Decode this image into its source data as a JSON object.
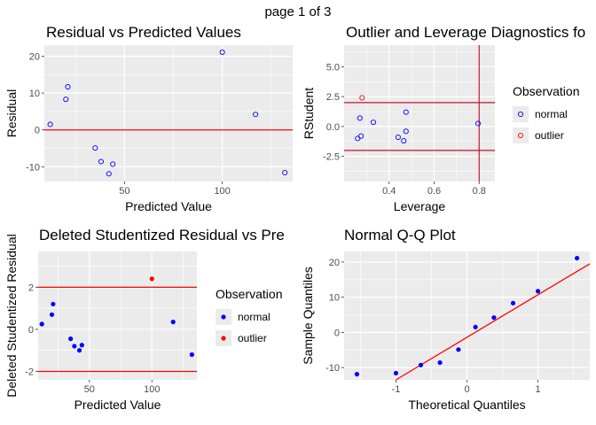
{
  "page_title": "page 1 of 3",
  "colors": {
    "normal": "#0000ff",
    "outlier": "#ff0000",
    "panel_bg": "#ebebeb",
    "grid": "#ffffff",
    "ref_line": "#ff0000",
    "lev_line": "#c8102e"
  },
  "chart_data": [
    {
      "id": "p1",
      "type": "scatter",
      "title": "Residual vs Predicted Values",
      "xlabel": "Predicted Value",
      "ylabel": "Residual",
      "xlim": [
        9,
        136
      ],
      "ylim": [
        -14,
        23
      ],
      "xticks": [
        50,
        100
      ],
      "yticks": [
        -10,
        0,
        10,
        20
      ],
      "marker": "open",
      "hlines": [
        0
      ],
      "points": [
        {
          "x": 12,
          "y": 1.5,
          "cls": "normal"
        },
        {
          "x": 20,
          "y": 8.3,
          "cls": "normal"
        },
        {
          "x": 21,
          "y": 11.7,
          "cls": "normal"
        },
        {
          "x": 35,
          "y": -4.9,
          "cls": "normal"
        },
        {
          "x": 38,
          "y": -8.6,
          "cls": "normal"
        },
        {
          "x": 42,
          "y": -11.9,
          "cls": "normal"
        },
        {
          "x": 44,
          "y": -9.3,
          "cls": "normal"
        },
        {
          "x": 100,
          "y": 21.1,
          "cls": "normal"
        },
        {
          "x": 117,
          "y": 4.2,
          "cls": "normal"
        },
        {
          "x": 132,
          "y": -11.6,
          "cls": "normal"
        }
      ]
    },
    {
      "id": "p2",
      "type": "scatter",
      "title": "Outlier and Leverage Diagnostics fo",
      "xlabel": "Leverage",
      "ylabel": "RStudent",
      "xlim": [
        0.2,
        0.87
      ],
      "ylim": [
        -4.6,
        6.8
      ],
      "xticks": [
        0.4,
        0.6,
        0.8
      ],
      "yticks": [
        -2.5,
        0.0,
        2.5,
        5.0
      ],
      "ytick_labels": [
        "-2.5",
        "0.0",
        "2.5",
        "5.0"
      ],
      "marker": "open",
      "hlines": [
        2,
        -2
      ],
      "vlines": [
        0.8
      ],
      "legend": {
        "title": "Observation",
        "entries": [
          "normal",
          "outlier"
        ]
      },
      "points": [
        {
          "x": 0.26,
          "y": -1.0,
          "cls": "normal"
        },
        {
          "x": 0.27,
          "y": 0.7,
          "cls": "normal"
        },
        {
          "x": 0.275,
          "y": -0.8,
          "cls": "normal"
        },
        {
          "x": 0.28,
          "y": 2.4,
          "cls": "outlier"
        },
        {
          "x": 0.33,
          "y": 0.35,
          "cls": "normal"
        },
        {
          "x": 0.44,
          "y": -0.9,
          "cls": "normal"
        },
        {
          "x": 0.465,
          "y": -1.2,
          "cls": "normal"
        },
        {
          "x": 0.475,
          "y": -0.4,
          "cls": "normal"
        },
        {
          "x": 0.475,
          "y": 1.2,
          "cls": "normal"
        },
        {
          "x": 0.795,
          "y": 0.25,
          "cls": "normal"
        }
      ]
    },
    {
      "id": "p3",
      "type": "scatter",
      "title": "Deleted Studentized Residual vs Pre",
      "xlabel": "Predicted Value",
      "ylabel": "Deleted Studentized Residual",
      "xlim": [
        9,
        136
      ],
      "ylim": [
        -2.4,
        3.7
      ],
      "xticks": [
        50,
        100
      ],
      "yticks": [
        -2,
        0,
        2
      ],
      "marker": "filled",
      "hlines": [
        2,
        -2
      ],
      "legend": {
        "title": "Observation",
        "entries": [
          "normal",
          "outlier"
        ]
      },
      "points": [
        {
          "x": 12,
          "y": 0.25,
          "cls": "normal"
        },
        {
          "x": 20,
          "y": 0.7,
          "cls": "normal"
        },
        {
          "x": 21,
          "y": 1.2,
          "cls": "normal"
        },
        {
          "x": 35,
          "y": -0.45,
          "cls": "normal"
        },
        {
          "x": 38,
          "y": -0.8,
          "cls": "normal"
        },
        {
          "x": 42,
          "y": -1.0,
          "cls": "normal"
        },
        {
          "x": 44,
          "y": -0.75,
          "cls": "normal"
        },
        {
          "x": 100,
          "y": 2.4,
          "cls": "outlier"
        },
        {
          "x": 117,
          "y": 0.35,
          "cls": "normal"
        },
        {
          "x": 132,
          "y": -1.2,
          "cls": "normal"
        }
      ]
    },
    {
      "id": "p4",
      "type": "scatter",
      "title": "Normal Q-Q Plot",
      "xlabel": "Theoretical Quantiles",
      "ylabel": "Sample Quantiles",
      "xlim": [
        -1.73,
        1.73
      ],
      "ylim": [
        -13.5,
        23
      ],
      "xticks": [
        -1,
        0,
        1
      ],
      "yticks": [
        -10,
        0,
        10,
        20
      ],
      "marker": "filled",
      "refline": {
        "x1": -1.0,
        "y1": -13.5,
        "x2": 1.73,
        "y2": 19.5
      },
      "points": [
        {
          "x": -1.55,
          "y": -11.9,
          "cls": "normal"
        },
        {
          "x": -1.0,
          "y": -11.6,
          "cls": "normal"
        },
        {
          "x": -0.65,
          "y": -9.3,
          "cls": "normal"
        },
        {
          "x": -0.38,
          "y": -8.6,
          "cls": "normal"
        },
        {
          "x": -0.12,
          "y": -4.9,
          "cls": "normal"
        },
        {
          "x": 0.12,
          "y": 1.5,
          "cls": "normal"
        },
        {
          "x": 0.38,
          "y": 4.2,
          "cls": "normal"
        },
        {
          "x": 0.65,
          "y": 8.3,
          "cls": "normal"
        },
        {
          "x": 1.0,
          "y": 11.7,
          "cls": "normal"
        },
        {
          "x": 1.55,
          "y": 21.1,
          "cls": "normal"
        }
      ]
    }
  ]
}
